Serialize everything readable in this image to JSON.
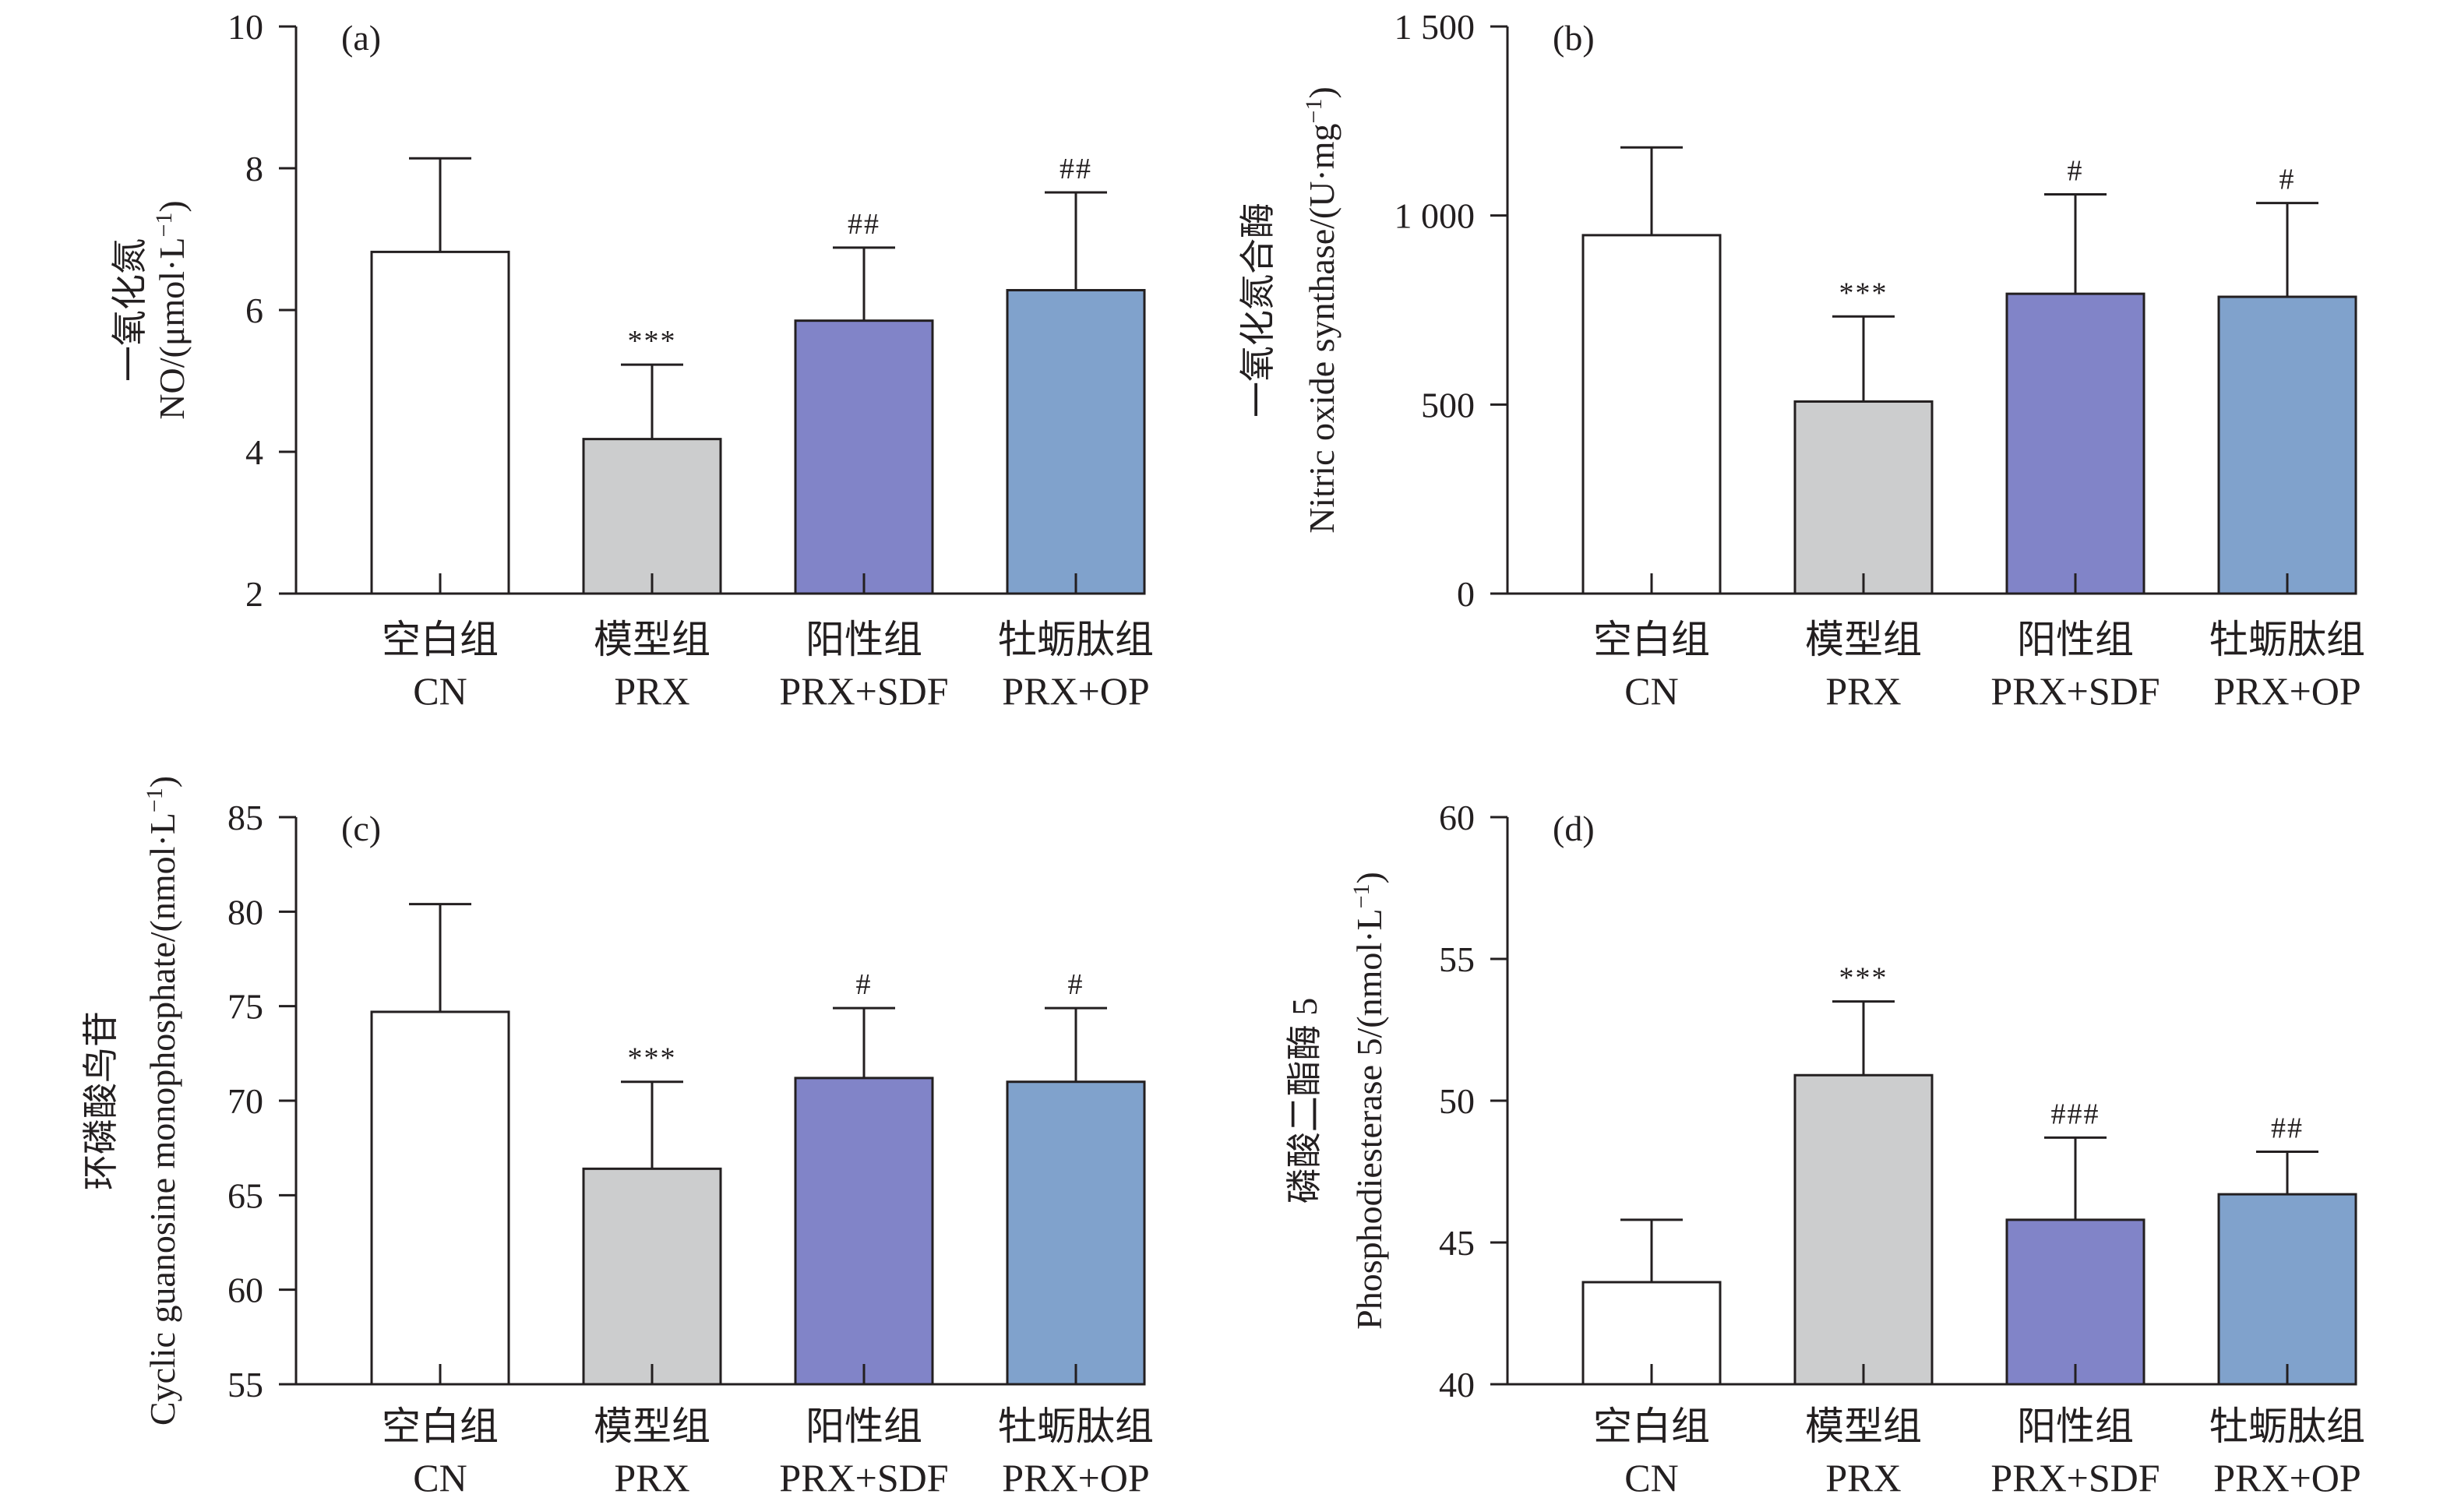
{
  "figure": {
    "colors": {
      "CN": "#ffffff",
      "PRX": "#cccdce",
      "PRX+SDF": "#8184c8",
      "PRX+OP": "#80a2cc",
      "outline": "#231f20"
    }
  },
  "chart_data": [
    {
      "type": "bar",
      "panel": "(a)",
      "categories": [
        {
          "zh": "空白组",
          "en": "CN"
        },
        {
          "zh": "模型组",
          "en": "PRX"
        },
        {
          "zh": "阳性组",
          "en": "PRX+SDF"
        },
        {
          "zh": "牡蛎肽组",
          "en": "PRX+OP"
        }
      ],
      "values": [
        6.82,
        4.18,
        5.85,
        6.28
      ],
      "errors": [
        1.32,
        1.05,
        1.03,
        1.38
      ],
      "significance": [
        "",
        "***",
        "##",
        "##"
      ],
      "ylabel_zh": "一氧化氮",
      "ylabel_en": "NO/(μmol·L",
      "ylabel_sup": "−1",
      "ylabel_end": ")",
      "ylim": [
        2,
        10
      ],
      "yticks": [
        2,
        4,
        6,
        8,
        10
      ],
      "ytick_labels": [
        "2",
        "4",
        "6",
        "8",
        "10"
      ]
    },
    {
      "type": "bar",
      "panel": "(b)",
      "categories": [
        {
          "zh": "空白组",
          "en": "CN"
        },
        {
          "zh": "模型组",
          "en": "PRX"
        },
        {
          "zh": "阳性组",
          "en": "PRX+SDF"
        },
        {
          "zh": "牡蛎肽组",
          "en": "PRX+OP"
        }
      ],
      "values": [
        948,
        508,
        793,
        785
      ],
      "errors": [
        232,
        225,
        263,
        248
      ],
      "significance": [
        "",
        "***",
        "#",
        "#"
      ],
      "ylabel_zh": "一氧化氮合酶",
      "ylabel_en": "Nitric oxide synthase/(U·mg",
      "ylabel_sup": "−1",
      "ylabel_end": ")",
      "ylim": [
        0,
        1500
      ],
      "yticks": [
        0,
        500,
        1000,
        1500
      ],
      "ytick_labels": [
        "0",
        "500",
        "1 000",
        "1 500"
      ]
    },
    {
      "type": "bar",
      "panel": "(c)",
      "categories": [
        {
          "zh": "空白组",
          "en": "CN"
        },
        {
          "zh": "模型组",
          "en": "PRX"
        },
        {
          "zh": "阳性组",
          "en": "PRX+SDF"
        },
        {
          "zh": "牡蛎肽组",
          "en": "PRX+OP"
        }
      ],
      "values": [
        74.7,
        66.4,
        71.2,
        71.0
      ],
      "errors": [
        5.7,
        4.6,
        3.7,
        3.9
      ],
      "significance": [
        "",
        "***",
        "#",
        "#"
      ],
      "ylabel_zh": "环磷酸鸟苷",
      "ylabel_en": "Cyclic guanosine monophosphate/(nmol·L",
      "ylabel_sup": "−1",
      "ylabel_end": ")",
      "ylim": [
        55,
        85
      ],
      "yticks": [
        55,
        60,
        65,
        70,
        75,
        80,
        85
      ],
      "ytick_labels": [
        "55",
        "60",
        "65",
        "70",
        "75",
        "80",
        "85"
      ]
    },
    {
      "type": "bar",
      "panel": "(d)",
      "categories": [
        {
          "zh": "空白组",
          "en": "CN"
        },
        {
          "zh": "模型组",
          "en": "PRX"
        },
        {
          "zh": "阳性组",
          "en": "PRX+SDF"
        },
        {
          "zh": "牡蛎肽组",
          "en": "PRX+OP"
        }
      ],
      "values": [
        43.6,
        50.9,
        45.8,
        46.7
      ],
      "errors": [
        2.2,
        2.6,
        2.9,
        1.5
      ],
      "significance": [
        "",
        "***",
        "###",
        "##"
      ],
      "ylabel_zh": "磷酸二酯酶 5",
      "ylabel_en": "Phosphodiesterase 5/(nmol·L",
      "ylabel_sup": "−1",
      "ylabel_end": ")",
      "ylim": [
        40,
        60
      ],
      "yticks": [
        40,
        45,
        50,
        55,
        60
      ],
      "ytick_labels": [
        "40",
        "45",
        "50",
        "55",
        "60"
      ]
    }
  ]
}
